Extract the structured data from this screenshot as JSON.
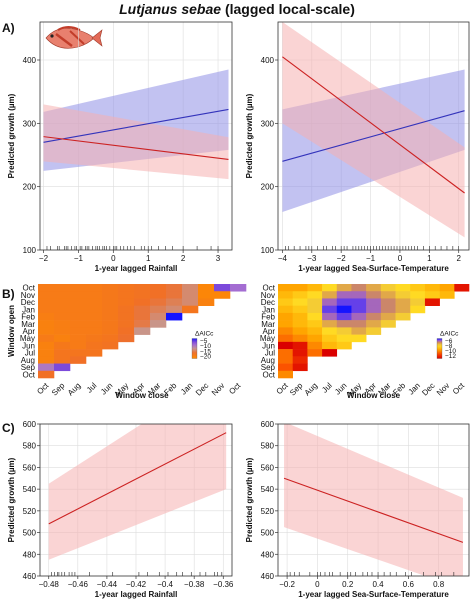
{
  "title": {
    "species": "Lutjanus sebae",
    "suffix": "(lagged local-scale)"
  },
  "panel_labels": {
    "a": "A)",
    "b": "B)",
    "c": "C)"
  },
  "icons": {
    "fish": "fish-icon"
  },
  "colors": {
    "blue": "#3333bb",
    "red": "#cc2222",
    "blue_band": "#8f8fe6",
    "red_band": "#f6b0b0"
  },
  "chart_data": [
    {
      "id": "a-left",
      "type": "line",
      "xlabel": "1-year lagged Rainfall",
      "ylabel": "Predicted growth (µm)",
      "xlim": [
        -2.1,
        3.4
      ],
      "ylim": [
        100,
        460
      ],
      "xticks": [
        -2,
        -1,
        0,
        1,
        2,
        3
      ],
      "yticks": [
        100,
        200,
        300,
        400
      ],
      "series": [
        {
          "color": "blue",
          "x": [
            -2,
            3.3
          ],
          "y": [
            270,
            322
          ],
          "lower": [
            225,
            258
          ],
          "upper": [
            318,
            385
          ]
        },
        {
          "color": "red",
          "x": [
            -2,
            3.3
          ],
          "y": [
            279,
            243
          ],
          "lower": [
            240,
            212
          ],
          "upper": [
            330,
            278
          ]
        }
      ],
      "rug": [
        -1.9,
        -1.8,
        -1.6,
        -1.55,
        -1.4,
        -1.35,
        -1.3,
        -1.2,
        -1.1,
        -1.05,
        -0.95,
        -0.9,
        -0.8,
        -0.75,
        -0.7,
        -0.6,
        -0.5,
        -0.45,
        -0.4,
        -0.3,
        -0.25,
        -0.2,
        -0.1,
        0,
        0.05,
        0.1,
        0.2,
        0.3,
        0.4,
        0.5,
        0.6,
        0.8,
        0.9,
        1.0,
        1.1,
        1.3,
        1.5,
        1.7,
        2.0,
        2.4,
        2.8,
        3.0
      ]
    },
    {
      "id": "a-right",
      "type": "line",
      "xlabel": "1-year lagged Sea-Surface-Temperature",
      "ylabel": "Predicted growth (µm)",
      "xlim": [
        -4.15,
        2.35
      ],
      "ylim": [
        100,
        460
      ],
      "xticks": [
        -4,
        -3,
        -2,
        -1,
        0,
        1,
        2
      ],
      "yticks": [
        100,
        200,
        300,
        400
      ],
      "series": [
        {
          "color": "blue",
          "x": [
            -4,
            2.2
          ],
          "y": [
            240,
            320
          ],
          "lower": [
            160,
            258
          ],
          "upper": [
            322,
            385
          ]
        },
        {
          "color": "red",
          "x": [
            -4,
            2.2
          ],
          "y": [
            405,
            190
          ],
          "lower": [
            300,
            120
          ],
          "upper": [
            460,
            262
          ]
        }
      ],
      "rug": [
        -3.9,
        -3.8,
        -3.6,
        -3.4,
        -3.2,
        -3.1,
        -3.0,
        -2.8,
        -2.6,
        -2.5,
        -2.3,
        -2.2,
        -2.0,
        -1.9,
        -1.8,
        -1.6,
        -1.5,
        -1.4,
        -1.3,
        -1.2,
        -1.1,
        -1.0,
        -0.9,
        -0.8,
        -0.7,
        -0.6,
        -0.5,
        -0.4,
        -0.3,
        -0.2,
        -0.1,
        0,
        0.1,
        0.2,
        0.3,
        0.4,
        0.5,
        0.6,
        0.8,
        1.0,
        1.2,
        1.4,
        1.6,
        1.8,
        2.0
      ]
    },
    {
      "id": "b-left",
      "type": "heatmap",
      "xlabel": "Window close",
      "ylabel": "Window open",
      "xcategories": [
        "Oct",
        "Sep",
        "Aug",
        "Jul",
        "Jun",
        "May",
        "Apr",
        "Mar",
        "Feb",
        "Jan",
        "Dec",
        "Nov",
        "Oct"
      ],
      "ycategories": [
        "Oct",
        "Nov",
        "Dec",
        "Jan",
        "Feb",
        "Mar",
        "Apr",
        "May",
        "Jun",
        "Jul",
        "Aug",
        "Sep",
        "Oct"
      ],
      "legend_title": "ΔAICc",
      "legend_ticks": [
        -5,
        -10,
        -15,
        -20
      ],
      "vmin": -22,
      "vmax": -3,
      "values": [
        [
          -6,
          -6,
          -6,
          -6,
          -6.5,
          -7,
          -7.5,
          -8,
          -9,
          -11,
          -4,
          -19,
          -16
        ],
        [
          -6,
          -6,
          -6,
          -6,
          -6.5,
          -7,
          -7.5,
          -8,
          -9,
          -11,
          -4,
          -4
        ],
        [
          -6,
          -6,
          -6,
          -6,
          -6.5,
          -7,
          -8,
          -9,
          -10,
          -11,
          -5
        ],
        [
          -6,
          -6,
          -6,
          -6,
          -6.5,
          -7.5,
          -9,
          -10,
          -11,
          -7
        ],
        [
          -5.5,
          -6,
          -6,
          -6,
          -6.5,
          -7.5,
          -9,
          -11,
          -22
        ],
        [
          -5,
          -5.5,
          -6,
          -6,
          -6.5,
          -7.5,
          -9.5,
          -12
        ],
        [
          -5,
          -5.5,
          -6,
          -6,
          -6.5,
          -8,
          -12
        ],
        [
          -6,
          -5,
          -6,
          -6.5,
          -7,
          -8.5
        ],
        [
          -5,
          -6.5,
          -6,
          -7,
          -7.5
        ],
        [
          -5,
          -7,
          -7,
          -7
        ],
        [
          -5,
          -7,
          -8
        ],
        [
          -15,
          -19
        ],
        [
          -8
        ]
      ]
    },
    {
      "id": "b-right",
      "type": "heatmap",
      "xlabel": "Window close",
      "ylabel": "",
      "xcategories": [
        "Oct",
        "Sep",
        "Aug",
        "Jul",
        "Jun",
        "May",
        "Apr",
        "Mar",
        "Feb",
        "Jan",
        "Dec",
        "Nov",
        "Oct"
      ],
      "ycategories": [
        "Oct",
        "Nov",
        "Dec",
        "Jan",
        "Feb",
        "Mar",
        "Apr",
        "May",
        "Jun",
        "Jul",
        "Aug",
        "Sep",
        "Oct"
      ],
      "legend_title": "ΔAICc",
      "legend_ticks": [
        -6,
        -8,
        -10,
        -12
      ],
      "vmin": -13,
      "vmax": -5,
      "values": [
        [
          -8.5,
          -8.5,
          -9,
          -10,
          -11,
          -11.5,
          -11,
          -10.5,
          -10,
          -9.5,
          -9,
          -8.5,
          -5.5
        ],
        [
          -9,
          -9.5,
          -10,
          -11,
          -12,
          -12,
          -11.5,
          -11,
          -10.5,
          -10,
          -9.5,
          -9
        ],
        [
          -9.5,
          -10,
          -10.5,
          -12,
          -12.5,
          -12.5,
          -12,
          -11.5,
          -11,
          -10.5,
          -5.5
        ],
        [
          -9,
          -9.5,
          -10.5,
          -12.5,
          -13,
          -12.5,
          -12,
          -11.5,
          -11,
          -10
        ],
        [
          -8.5,
          -9,
          -10,
          -12,
          -12.5,
          -12,
          -11.5,
          -11,
          -10.5
        ],
        [
          -8.5,
          -9,
          -9.5,
          -11,
          -11.5,
          -11.5,
          -11,
          -10.5
        ],
        [
          -8,
          -8.5,
          -9,
          -10,
          -10.5,
          -11,
          -10.5
        ],
        [
          -7.5,
          -8,
          -8.5,
          -9.5,
          -10,
          -10
        ],
        [
          -5,
          -5.5,
          -8,
          -9,
          -9.5
        ],
        [
          -7.5,
          -5.5,
          -7.5,
          -4.5
        ],
        [
          -7.5,
          -6
        ],
        [
          -7,
          -5.5
        ],
        [
          -8
        ]
      ]
    },
    {
      "id": "c-left",
      "type": "line",
      "xlabel": "1-year lagged Rainfall",
      "ylabel": "Predicted growth (µm)",
      "xlim": [
        -0.486,
        -0.354
      ],
      "ylim": [
        460,
        600
      ],
      "xticks": [
        -0.48,
        -0.46,
        -0.44,
        -0.42,
        -0.4,
        -0.38,
        -0.36
      ],
      "yticks": [
        460,
        480,
        500,
        520,
        540,
        560,
        580,
        600
      ],
      "series": [
        {
          "color": "red",
          "x": [
            -0.48,
            -0.358
          ],
          "y": [
            508,
            592
          ],
          "lower": [
            475,
            540
          ],
          "upper": [
            545,
            650
          ]
        }
      ],
      "rug": [
        -0.478,
        -0.476,
        -0.474,
        -0.473,
        -0.471,
        -0.469,
        -0.466,
        -0.464,
        -0.462,
        -0.452,
        -0.436,
        -0.418,
        -0.412,
        -0.404,
        -0.398,
        -0.392,
        -0.388,
        -0.382,
        -0.376,
        -0.372,
        -0.366,
        -0.364,
        -0.361
      ]
    },
    {
      "id": "c-right",
      "type": "line",
      "xlabel": "1-year lagged Sea-Surface-Temperature",
      "ylabel": "Predicted growth (µm)",
      "xlim": [
        -0.26,
        1.0
      ],
      "ylim": [
        460,
        600
      ],
      "xticks": [
        -0.2,
        0.0,
        0.2,
        0.4,
        0.6,
        0.8
      ],
      "yticks": [
        460,
        480,
        500,
        520,
        540,
        560,
        580,
        600
      ],
      "series": [
        {
          "color": "red",
          "x": [
            -0.22,
            0.96
          ],
          "y": [
            550,
            491
          ],
          "lower": [
            505,
            448
          ],
          "upper": [
            602,
            532
          ]
        }
      ],
      "rug": [
        -0.2,
        -0.18,
        -0.15,
        -0.12,
        -0.05,
        0.0,
        0.02,
        0.05,
        0.08,
        0.1,
        0.15,
        0.2,
        0.22,
        0.25,
        0.3,
        0.33,
        0.36,
        0.4,
        0.44,
        0.48,
        0.52,
        0.58,
        0.62,
        0.7,
        0.78,
        0.82,
        0.9
      ]
    }
  ]
}
